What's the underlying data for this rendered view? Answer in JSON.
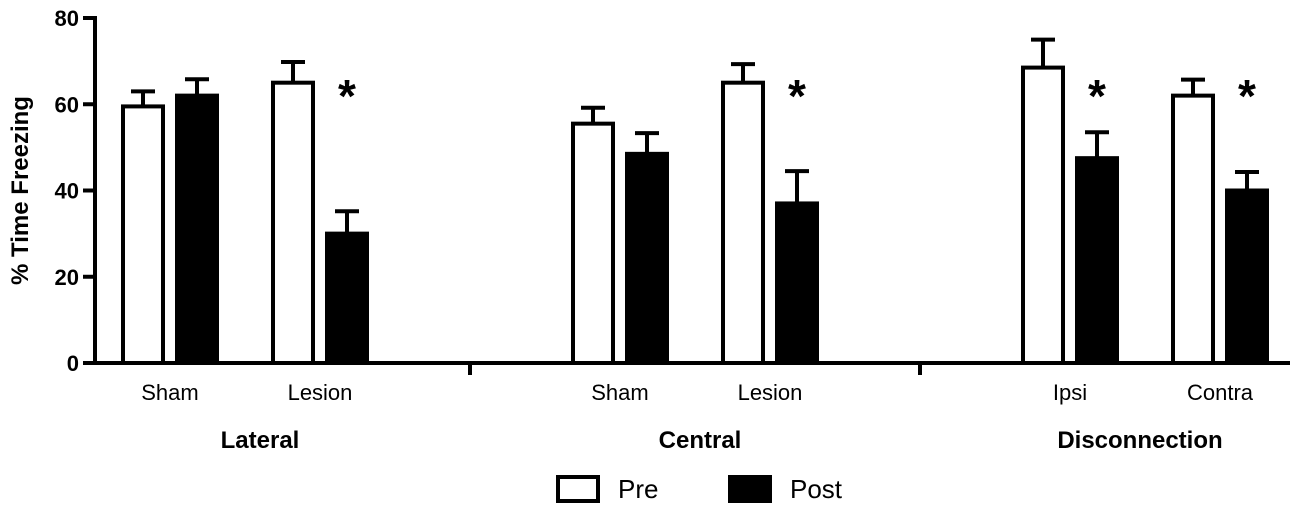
{
  "chart_data": {
    "type": "bar",
    "title": "",
    "ylabel": "% Time Freezing",
    "ylim": [
      0,
      80
    ],
    "yticks": [
      0,
      20,
      40,
      60,
      80
    ],
    "groups": [
      {
        "label": "Lateral",
        "categories": [
          "Sham",
          "Lesion"
        ]
      },
      {
        "label": "Central",
        "categories": [
          "Sham",
          "Lesion"
        ]
      },
      {
        "label": "Disconnection",
        "categories": [
          "Ipsi",
          "Contra"
        ]
      }
    ],
    "series": [
      {
        "name": "Pre",
        "fill": "#ffffff",
        "values": [
          59.5,
          65.0,
          55.5,
          65.0,
          68.5,
          62.0
        ],
        "errors": [
          3.5,
          4.8,
          3.7,
          4.3,
          6.5,
          3.7
        ]
      },
      {
        "name": "Post",
        "fill": "#000000",
        "values": [
          62.0,
          30.0,
          48.5,
          37.0,
          47.5,
          40.0
        ],
        "errors": [
          3.8,
          5.2,
          4.8,
          7.5,
          6.0,
          4.3
        ]
      }
    ],
    "significance": [
      {
        "category_index": 1,
        "marker": "*"
      },
      {
        "category_index": 3,
        "marker": "*"
      },
      {
        "category_index": 4,
        "marker": "*"
      },
      {
        "category_index": 5,
        "marker": "*"
      }
    ],
    "legend_position": "bottom-center",
    "grid": false
  }
}
